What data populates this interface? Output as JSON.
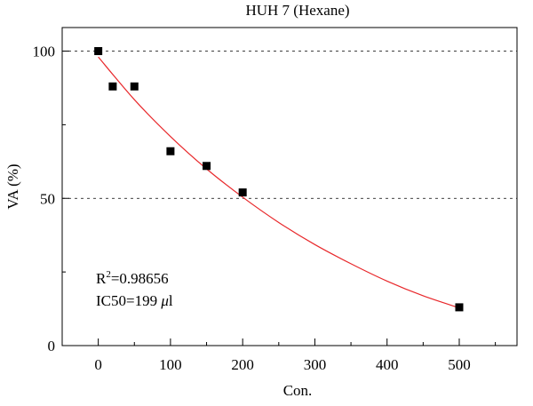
{
  "chart_data": {
    "type": "scatter",
    "title": "HUH 7 (Hexane)",
    "xlabel": "Con.",
    "ylabel": "VA (%)",
    "xlim": [
      -50,
      580
    ],
    "ylim": [
      0,
      108
    ],
    "x_ticks": [
      0,
      100,
      200,
      300,
      400,
      500
    ],
    "y_ticks": [
      0,
      50,
      100
    ],
    "x_tick_labels": [
      "0",
      "100",
      "200",
      "300",
      "400",
      "500"
    ],
    "y_tick_labels": [
      "0",
      "50",
      "100"
    ],
    "grid": "dashed horizontal at 50 and 100",
    "series": [
      {
        "marker": "square",
        "color": "#000000",
        "x": [
          0,
          20,
          50,
          100,
          150,
          200,
          500
        ],
        "y": [
          100,
          88,
          88,
          66,
          61,
          52,
          13
        ]
      }
    ],
    "fit_curve": {
      "color": "#e8282b",
      "x": [
        0,
        50,
        100,
        150,
        200,
        250,
        300,
        350,
        400,
        450,
        500
      ],
      "y": [
        98,
        83.5,
        71,
        60,
        50.4,
        41.8,
        34.3,
        27.8,
        21.9,
        16.9,
        12.8
      ]
    },
    "annotations": {
      "r2_prefix": "R",
      "r2_sup": "2",
      "r2_value": "=0.98656",
      "ic50_prefix": "IC50=199 ",
      "ic50_mu": "μ",
      "ic50_unit": "l"
    }
  }
}
